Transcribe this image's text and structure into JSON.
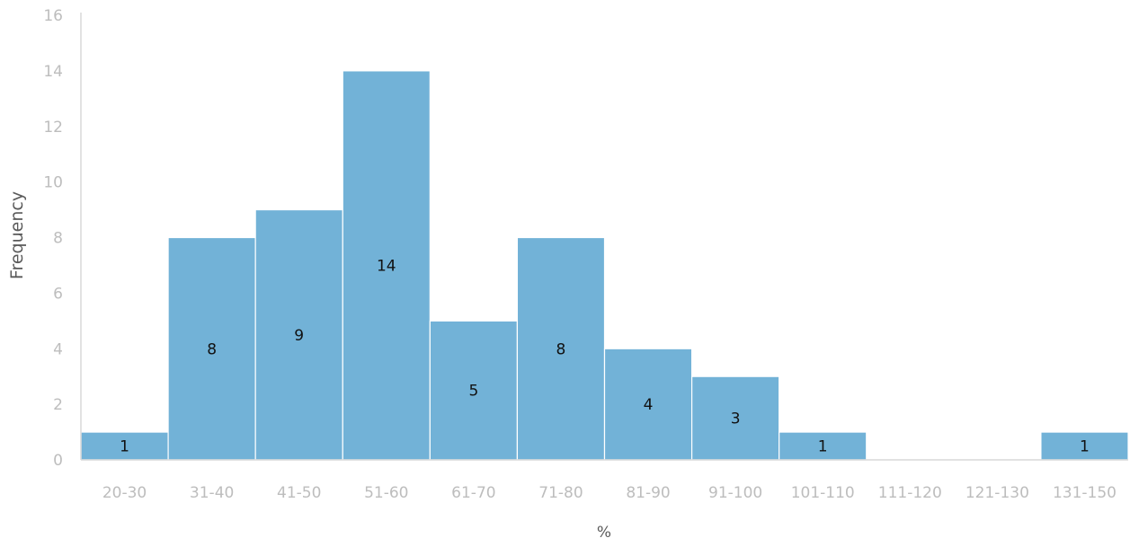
{
  "chart_data": {
    "type": "bar",
    "title": "",
    "xlabel": "%",
    "ylabel": "Frequency",
    "categories": [
      "20-30",
      "31-40",
      "41-50",
      "51-60",
      "61-70",
      "71-80",
      "81-90",
      "91-100",
      "101-110",
      "111-120",
      "121-130",
      "131-150"
    ],
    "values": [
      1,
      8,
      9,
      14,
      5,
      8,
      4,
      3,
      1,
      0,
      0,
      1
    ],
    "data_labels": [
      "1",
      "8",
      "9",
      "14",
      "5",
      "8",
      "4",
      "3",
      "1",
      "",
      "",
      "1"
    ],
    "ylim": [
      0,
      16
    ],
    "yticks": [
      "0",
      "2",
      "4",
      "6",
      "8",
      "10",
      "12",
      "14",
      "16"
    ],
    "grid": false,
    "legend": "none",
    "colors": {
      "bar": "#72b2d7",
      "bar_edge": "#ffffff",
      "axis": "#d9d9d9",
      "tick_text": "#bdbdbd",
      "label_text": "#5a5a5a",
      "data_label": "#111111"
    }
  }
}
